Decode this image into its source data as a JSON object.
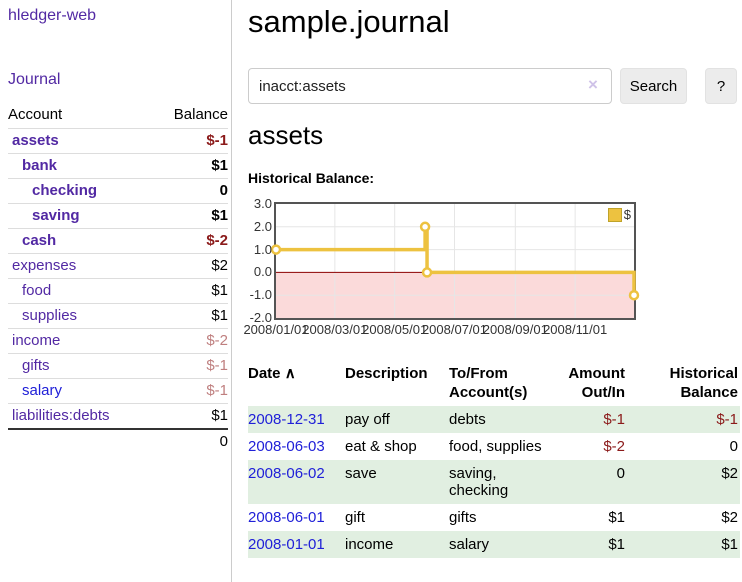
{
  "colors": {
    "link_purple": "#5229a3",
    "link_blue": "#2020d8",
    "negative_strong": "#8b1a1a",
    "negative_light": "#bf7f7f",
    "row_shade_green": "#e1efe1"
  },
  "sidebar": {
    "brand": "hledger-web",
    "journal_link": "Journal",
    "headers": {
      "account": "Account",
      "balance": "Balance"
    },
    "accounts": [
      {
        "name": "assets",
        "balance": "$-1",
        "depth": 1,
        "bold": true,
        "neg": "strong",
        "link": "purple"
      },
      {
        "name": "bank",
        "balance": "$1",
        "depth": 2,
        "bold": true,
        "neg": "",
        "link": "purple"
      },
      {
        "name": "checking",
        "balance": "0",
        "depth": 3,
        "bold": true,
        "neg": "",
        "link": "purple"
      },
      {
        "name": "saving",
        "balance": "$1",
        "depth": 3,
        "bold": true,
        "neg": "",
        "link": "purple"
      },
      {
        "name": "cash",
        "balance": "$-2",
        "depth": 2,
        "bold": true,
        "neg": "strong",
        "link": "purple"
      },
      {
        "name": "expenses",
        "balance": "$2",
        "depth": 1,
        "bold": false,
        "neg": "",
        "link": "purple"
      },
      {
        "name": "food",
        "balance": "$1",
        "depth": 2,
        "bold": false,
        "neg": "",
        "link": "purple"
      },
      {
        "name": "supplies",
        "balance": "$1",
        "depth": 2,
        "bold": false,
        "neg": "",
        "link": "purple"
      },
      {
        "name": "income",
        "balance": "$-2",
        "depth": 1,
        "bold": false,
        "neg": "light",
        "link": "purple"
      },
      {
        "name": "gifts",
        "balance": "$-1",
        "depth": 2,
        "bold": false,
        "neg": "light",
        "link": "purple"
      },
      {
        "name": "salary",
        "balance": "$-1",
        "depth": 2,
        "bold": false,
        "neg": "light",
        "link": "blue"
      },
      {
        "name": "liabilities:debts",
        "balance": "$1",
        "depth": 1,
        "bold": false,
        "neg": "",
        "link": "purple"
      }
    ],
    "total": "0"
  },
  "main": {
    "title": "sample.journal",
    "search": {
      "value": "inacct:assets",
      "clear_icon": "×",
      "search_button": "Search",
      "help_button": "?"
    },
    "account_heading": "assets",
    "chart_label": "Historical Balance:"
  },
  "chart_data": {
    "type": "line",
    "title": "Historical Balance",
    "step": true,
    "legend": {
      "label": "$",
      "position": "top-right"
    },
    "series": [
      {
        "name": "$",
        "color": "#EDC240",
        "points": [
          {
            "date": "2008-01-01",
            "day": 0,
            "value": 1,
            "marker": true
          },
          {
            "date": "2008-06-01",
            "day": 152,
            "value": 2,
            "marker": true
          },
          {
            "date": "2008-06-02",
            "day": 153,
            "value": 2,
            "marker": false
          },
          {
            "date": "2008-06-03",
            "day": 154,
            "value": 0,
            "marker": true
          },
          {
            "date": "2008-12-31",
            "day": 365,
            "value": -1,
            "marker": true
          }
        ]
      }
    ],
    "x_ticks": [
      {
        "label": "2008/01/01",
        "day": 0
      },
      {
        "label": "2008/03/01",
        "day": 60
      },
      {
        "label": "2008/05/01",
        "day": 121
      },
      {
        "label": "2008/07/01",
        "day": 182
      },
      {
        "label": "2008/09/01",
        "day": 244
      },
      {
        "label": "2008/11/01",
        "day": 305
      }
    ],
    "y_ticks": [
      "3.0",
      "2.0",
      "1.0",
      "0.0",
      "-1.0",
      "-2.0"
    ],
    "ylim": [
      -2,
      3
    ],
    "xlim_days": [
      0,
      365
    ],
    "grid_color": "#e6e6e6",
    "zero_line_color": "#8b0000",
    "negative_region_fill": "#fbdada",
    "border_color": "#545454"
  },
  "register": {
    "headers": [
      "Date",
      "Description",
      "To/From Account(s)",
      "Amount Out/In",
      "Historical Balance"
    ],
    "sort_icon": "∧",
    "rows": [
      {
        "date": "2008-12-31",
        "description": "pay off",
        "accounts": "debts",
        "amount": "$-1",
        "balance": "$-1",
        "amount_neg": true,
        "balance_neg": true,
        "shaded": true
      },
      {
        "date": "2008-06-03",
        "description": "eat & shop",
        "accounts": "food, supplies",
        "amount": "$-2",
        "balance": "0",
        "amount_neg": true,
        "balance_neg": false,
        "shaded": false
      },
      {
        "date": "2008-06-02",
        "description": "save",
        "accounts": "saving, checking",
        "amount": "0",
        "balance": "$2",
        "amount_neg": false,
        "balance_neg": false,
        "shaded": true
      },
      {
        "date": "2008-06-01",
        "description": "gift",
        "accounts": "gifts",
        "amount": "$1",
        "balance": "$2",
        "amount_neg": false,
        "balance_neg": false,
        "shaded": false
      },
      {
        "date": "2008-01-01",
        "description": "income",
        "accounts": "salary",
        "amount": "$1",
        "balance": "$1",
        "amount_neg": false,
        "balance_neg": false,
        "shaded": true
      }
    ]
  }
}
